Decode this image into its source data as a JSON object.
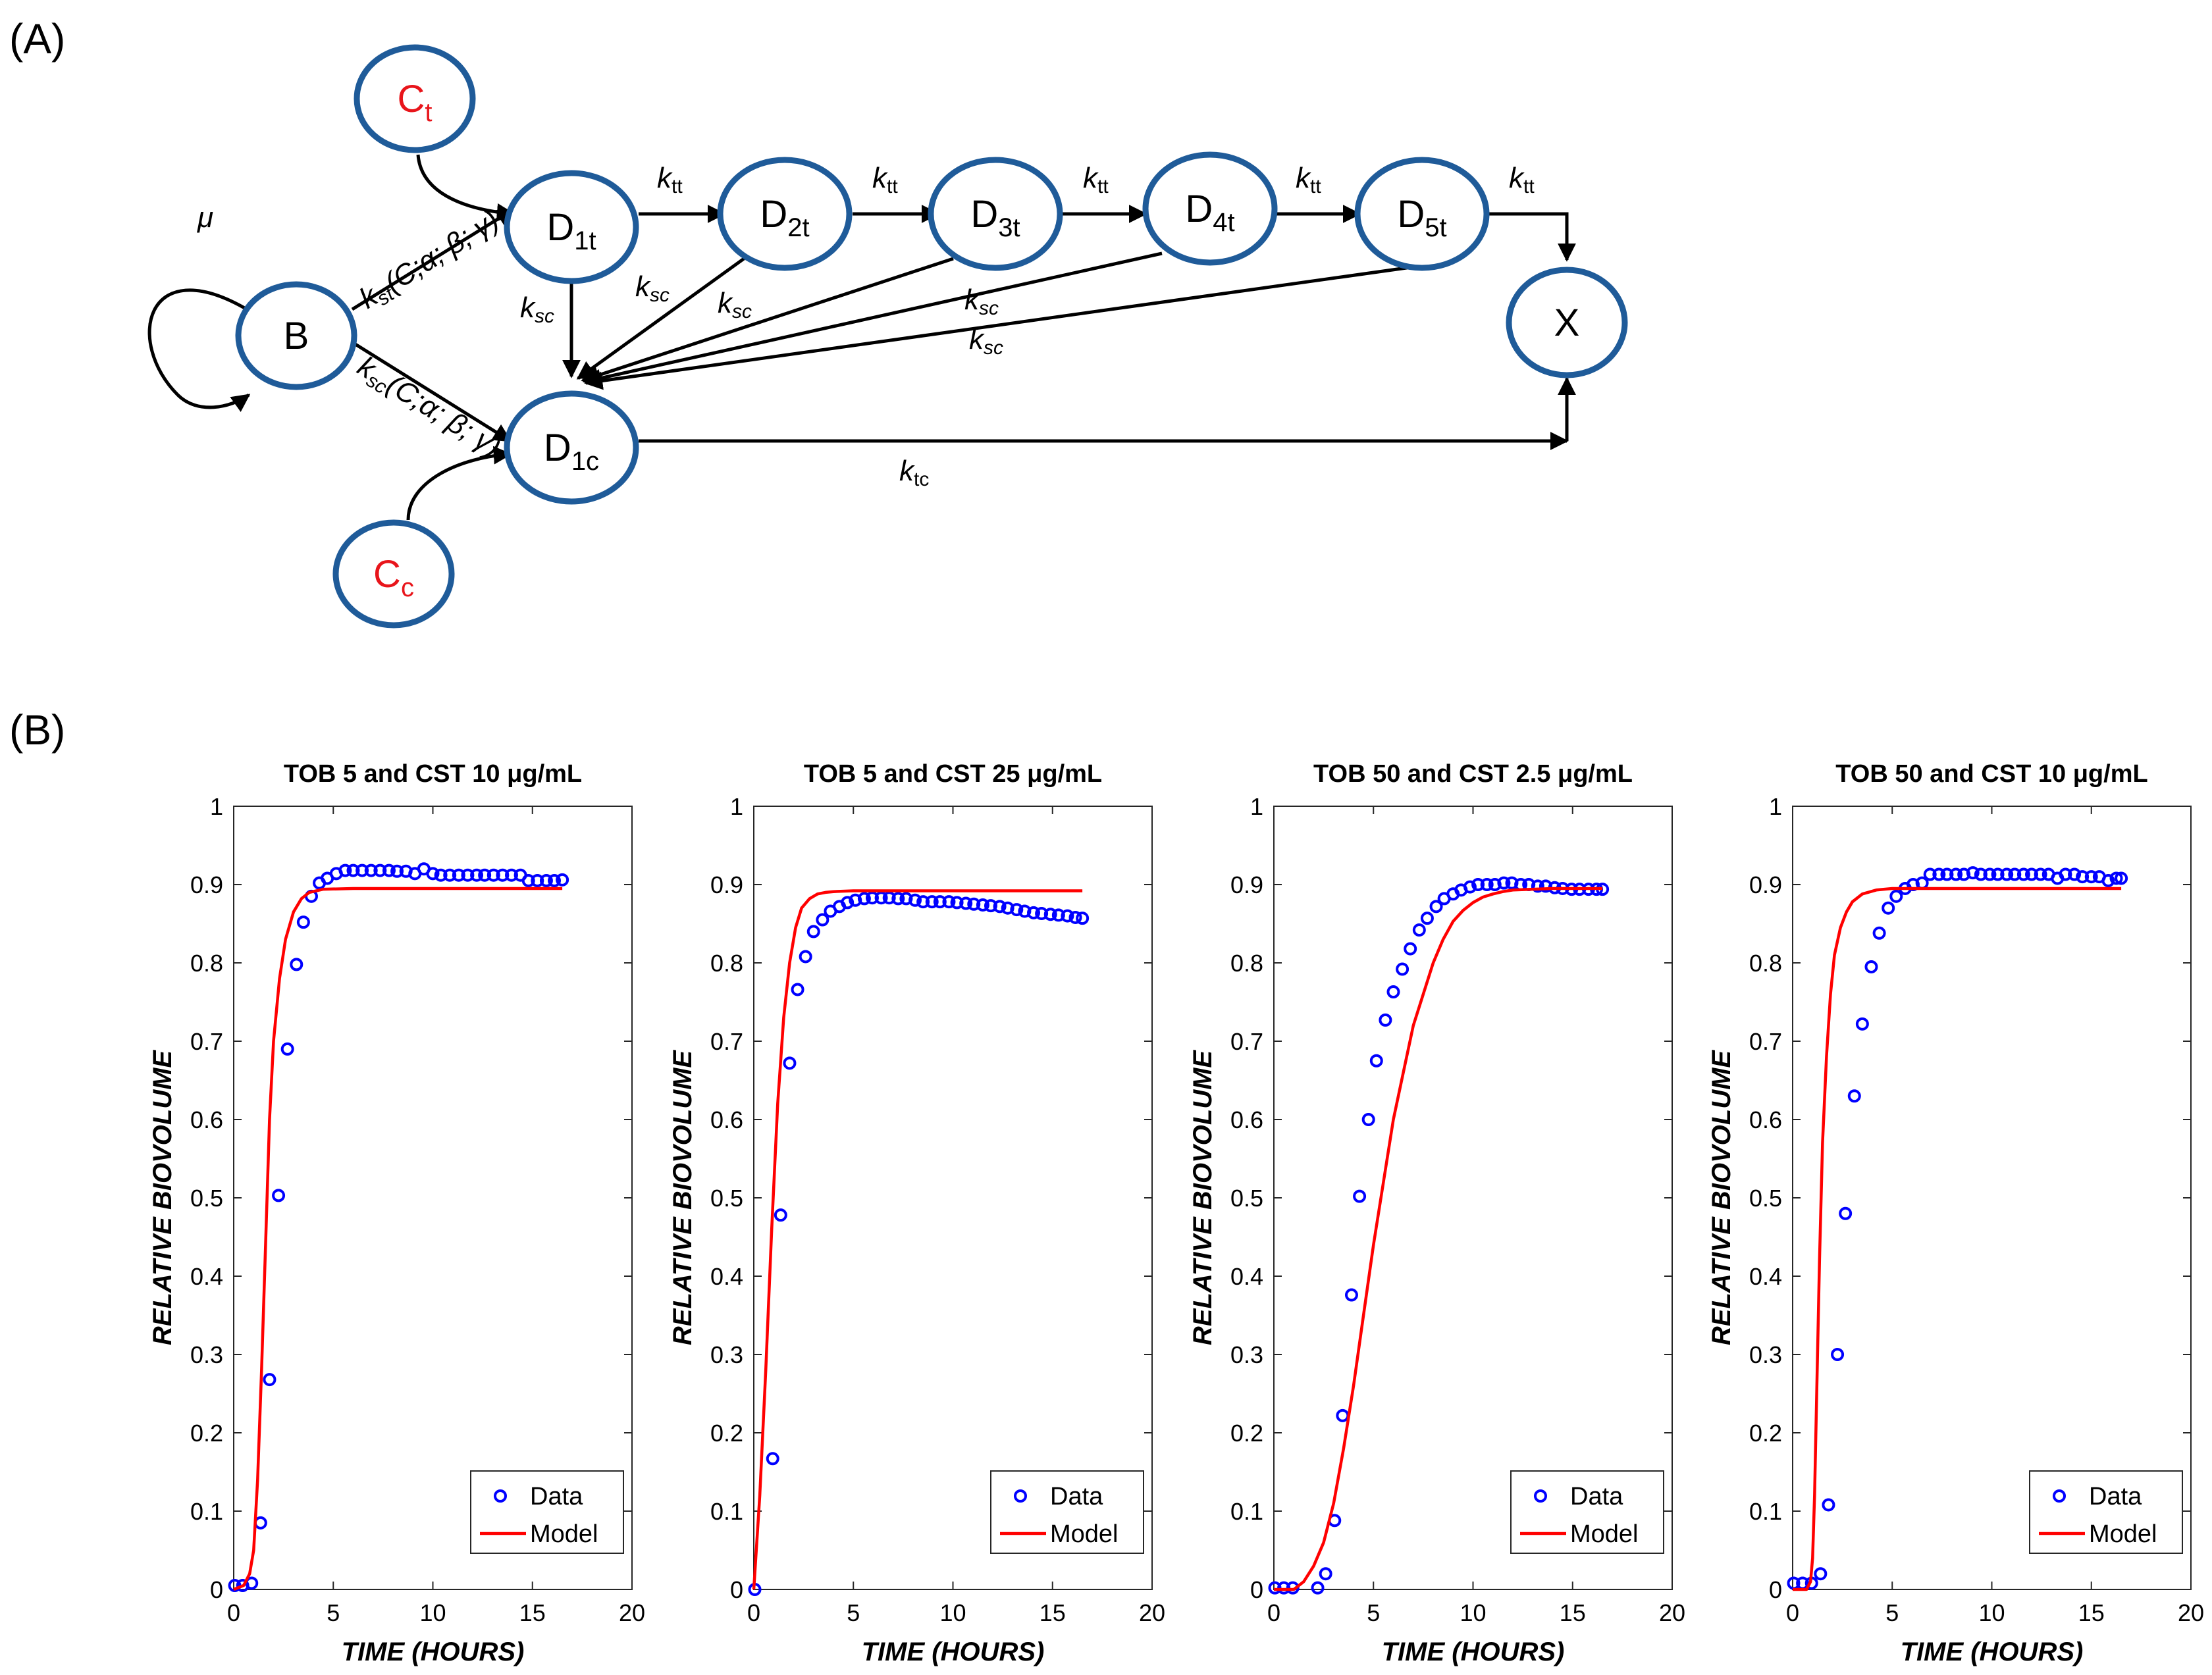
{
  "panel_labels": {
    "a": "(A)",
    "b": "(B)"
  },
  "diagram": {
    "nodes": {
      "Ct": {
        "main": "C",
        "sub": "t",
        "color": "#e8151b"
      },
      "Cc": {
        "main": "C",
        "sub": "c",
        "color": "#e8151b"
      },
      "B": {
        "main": "B",
        "sub": ""
      },
      "D1t": {
        "main": "D",
        "sub": "1t"
      },
      "D2t": {
        "main": "D",
        "sub": "2t"
      },
      "D3t": {
        "main": "D",
        "sub": "3t"
      },
      "D4t": {
        "main": "D",
        "sub": "4t"
      },
      "D5t": {
        "main": "D",
        "sub": "5t"
      },
      "D1c": {
        "main": "D",
        "sub": "1c"
      },
      "X": {
        "main": "X",
        "sub": ""
      }
    },
    "labels": {
      "mu": "μ",
      "k_tt": {
        "main": "k",
        "sub": "tt"
      },
      "k_sc": {
        "main": "k",
        "sub": "sc"
      },
      "k_tc": {
        "main": "k",
        "sub": "tc"
      },
      "k_st_fn": {
        "main": "k",
        "sub": "st",
        "args": "(C;α; β; γ)"
      },
      "k_sc_fn": {
        "main": "k",
        "sub": "sc",
        "args": "(C;α; β; γ)"
      }
    },
    "colors": {
      "node_stroke": "#1f5b99",
      "node_fill": "#ffffff",
      "accent": "#e8151b"
    }
  },
  "chart_data": [
    {
      "type": "scatter+line",
      "title": "TOB 5 and CST 10 μg/mL",
      "xlabel": "TIME (HOURS)",
      "ylabel": "RELATIVE BIOVOLUME",
      "xlim": [
        0,
        20
      ],
      "ylim": [
        0,
        1
      ],
      "xticks": [
        0,
        5,
        10,
        15,
        20
      ],
      "yticks": [
        0,
        0.1,
        0.2,
        0.3,
        0.4,
        0.5,
        0.6,
        0.7,
        0.8,
        0.9,
        1
      ],
      "legend": [
        "Data",
        "Model"
      ],
      "legend_position": "bottom-right",
      "series": [
        {
          "name": "Data",
          "style": "markers",
          "color": "#0000ff",
          "x": [
            0.05,
            0.45,
            0.9,
            1.35,
            1.8,
            2.25,
            2.7,
            3.15,
            3.5,
            3.9,
            4.3,
            4.7,
            5.15,
            5.6,
            6.0,
            6.45,
            6.9,
            7.35,
            7.8,
            8.2,
            8.65,
            9.1,
            9.55,
            10.0,
            10.4,
            10.85,
            11.3,
            11.75,
            12.2,
            12.6,
            13.05,
            13.5,
            13.95,
            14.4,
            14.8,
            15.25,
            15.7,
            16.1,
            16.5
          ],
          "y": [
            0.005,
            0.005,
            0.008,
            0.085,
            0.268,
            0.503,
            0.69,
            0.798,
            0.852,
            0.885,
            0.902,
            0.908,
            0.914,
            0.918,
            0.918,
            0.918,
            0.918,
            0.918,
            0.918,
            0.917,
            0.917,
            0.914,
            0.92,
            0.914,
            0.912,
            0.912,
            0.912,
            0.912,
            0.912,
            0.912,
            0.912,
            0.912,
            0.912,
            0.912,
            0.905,
            0.905,
            0.905,
            0.905,
            0.906
          ]
        },
        {
          "name": "Model",
          "style": "line",
          "color": "#ff0000",
          "x": [
            0,
            0.5,
            0.8,
            1.0,
            1.2,
            1.4,
            1.6,
            1.8,
            2.0,
            2.3,
            2.6,
            3.0,
            3.4,
            3.8,
            4.5,
            6,
            10,
            16.5
          ],
          "y": [
            0.0,
            0.005,
            0.02,
            0.05,
            0.14,
            0.28,
            0.44,
            0.6,
            0.7,
            0.78,
            0.83,
            0.865,
            0.882,
            0.89,
            0.894,
            0.895,
            0.895,
            0.895
          ]
        }
      ]
    },
    {
      "type": "scatter+line",
      "title": "TOB 5 and CST 25 μg/mL",
      "xlabel": "TIME (HOURS)",
      "ylabel": "RELATIVE BIOVOLUME",
      "xlim": [
        0,
        20
      ],
      "ylim": [
        0,
        1
      ],
      "xticks": [
        0,
        5,
        10,
        15,
        20
      ],
      "yticks": [
        0,
        0.1,
        0.2,
        0.3,
        0.4,
        0.5,
        0.6,
        0.7,
        0.8,
        0.9,
        1
      ],
      "legend": [
        "Data",
        "Model"
      ],
      "legend_position": "bottom-right",
      "series": [
        {
          "name": "Data",
          "style": "markers",
          "color": "#0000ff",
          "x": [
            0.05,
            0.95,
            1.35,
            1.8,
            2.2,
            2.6,
            3.0,
            3.45,
            3.85,
            4.3,
            4.7,
            5.1,
            5.55,
            5.95,
            6.4,
            6.8,
            7.25,
            7.65,
            8.1,
            8.5,
            8.95,
            9.35,
            9.8,
            10.2,
            10.65,
            11.05,
            11.5,
            11.9,
            12.35,
            12.75,
            13.2,
            13.6,
            14.05,
            14.45,
            14.9,
            15.3,
            15.75,
            16.15,
            16.5
          ],
          "y": [
            0.0,
            0.167,
            0.478,
            0.672,
            0.766,
            0.808,
            0.84,
            0.855,
            0.866,
            0.872,
            0.877,
            0.88,
            0.882,
            0.883,
            0.883,
            0.883,
            0.882,
            0.882,
            0.88,
            0.878,
            0.878,
            0.878,
            0.878,
            0.877,
            0.876,
            0.875,
            0.874,
            0.873,
            0.872,
            0.87,
            0.868,
            0.866,
            0.864,
            0.863,
            0.862,
            0.861,
            0.86,
            0.858,
            0.857
          ]
        },
        {
          "name": "Model",
          "style": "line",
          "color": "#ff0000",
          "x": [
            0,
            0.3,
            0.6,
            0.9,
            1.2,
            1.5,
            1.8,
            2.1,
            2.4,
            2.8,
            3.2,
            3.6,
            4.0,
            5.0,
            7,
            10,
            16.5
          ],
          "y": [
            0.0,
            0.12,
            0.28,
            0.46,
            0.62,
            0.73,
            0.8,
            0.845,
            0.87,
            0.882,
            0.888,
            0.89,
            0.891,
            0.892,
            0.892,
            0.892,
            0.892
          ]
        }
      ]
    },
    {
      "type": "scatter+line",
      "title": "TOB 50 and CST 2.5 μg/mL",
      "xlabel": "TIME (HOURS)",
      "ylabel": "RELATIVE BIOVOLUME",
      "xlim": [
        0,
        20
      ],
      "ylim": [
        0,
        1
      ],
      "xticks": [
        0,
        5,
        10,
        15,
        20
      ],
      "yticks": [
        0,
        0.1,
        0.2,
        0.3,
        0.4,
        0.5,
        0.6,
        0.7,
        0.8,
        0.9,
        1
      ],
      "legend": [
        "Data",
        "Model"
      ],
      "legend_position": "bottom-right",
      "series": [
        {
          "name": "Data",
          "style": "markers",
          "color": "#0000ff",
          "x": [
            0.05,
            0.5,
            0.95,
            2.2,
            2.6,
            3.05,
            3.45,
            3.9,
            4.3,
            4.75,
            5.15,
            5.6,
            6.0,
            6.45,
            6.85,
            7.3,
            7.7,
            8.15,
            8.55,
            9.0,
            9.4,
            9.85,
            10.25,
            10.7,
            11.1,
            11.55,
            11.95,
            12.4,
            12.8,
            13.25,
            13.65,
            14.1,
            14.5,
            14.95,
            15.35,
            15.8,
            16.2,
            16.5
          ],
          "y": [
            0.002,
            0.002,
            0.002,
            0.002,
            0.02,
            0.088,
            0.222,
            0.376,
            0.502,
            0.6,
            0.675,
            0.727,
            0.763,
            0.792,
            0.818,
            0.842,
            0.857,
            0.872,
            0.882,
            0.888,
            0.893,
            0.897,
            0.9,
            0.9,
            0.9,
            0.902,
            0.902,
            0.9,
            0.9,
            0.898,
            0.898,
            0.896,
            0.895,
            0.894,
            0.894,
            0.894,
            0.894,
            0.894
          ]
        },
        {
          "name": "Model",
          "style": "line",
          "color": "#ff0000",
          "x": [
            0,
            1,
            1.5,
            2,
            2.5,
            3,
            3.5,
            4,
            4.5,
            5,
            5.5,
            6,
            6.5,
            7,
            7.5,
            8,
            8.5,
            9,
            9.5,
            10,
            10.5,
            11,
            11.5,
            12,
            13,
            14,
            16.5
          ],
          "y": [
            0.0,
            0.0,
            0.01,
            0.03,
            0.06,
            0.11,
            0.18,
            0.26,
            0.35,
            0.44,
            0.52,
            0.6,
            0.66,
            0.72,
            0.76,
            0.8,
            0.83,
            0.853,
            0.867,
            0.877,
            0.884,
            0.888,
            0.891,
            0.893,
            0.894,
            0.895,
            0.895
          ]
        }
      ]
    },
    {
      "type": "scatter+line",
      "title": "TOB 50 and CST 10 μg/mL",
      "xlabel": "TIME (HOURS)",
      "ylabel": "RELATIVE BIOVOLUME",
      "xlim": [
        0,
        20
      ],
      "ylim": [
        0,
        1
      ],
      "xticks": [
        0,
        5,
        10,
        15,
        20
      ],
      "yticks": [
        0,
        0.1,
        0.2,
        0.3,
        0.4,
        0.5,
        0.6,
        0.7,
        0.8,
        0.9,
        1
      ],
      "legend": [
        "Data",
        "Model"
      ],
      "legend_position": "bottom-right",
      "series": [
        {
          "name": "Data",
          "style": "markers",
          "color": "#0000ff",
          "x": [
            0.05,
            0.5,
            0.95,
            1.4,
            1.8,
            2.25,
            2.65,
            3.1,
            3.5,
            3.95,
            4.35,
            4.8,
            5.2,
            5.65,
            6.05,
            6.5,
            6.9,
            7.35,
            7.75,
            8.2,
            8.6,
            9.05,
            9.45,
            9.9,
            10.3,
            10.75,
            11.15,
            11.6,
            12.0,
            12.45,
            12.85,
            13.3,
            13.7,
            14.15,
            14.55,
            15.0,
            15.4,
            15.85,
            16.25,
            16.5
          ],
          "y": [
            0.008,
            0.008,
            0.008,
            0.02,
            0.108,
            0.3,
            0.48,
            0.63,
            0.722,
            0.795,
            0.838,
            0.87,
            0.885,
            0.895,
            0.9,
            0.902,
            0.913,
            0.913,
            0.913,
            0.913,
            0.913,
            0.915,
            0.913,
            0.913,
            0.913,
            0.913,
            0.913,
            0.913,
            0.913,
            0.913,
            0.913,
            0.908,
            0.913,
            0.913,
            0.91,
            0.91,
            0.91,
            0.905,
            0.908,
            0.908
          ]
        },
        {
          "name": "Model",
          "style": "line",
          "color": "#ff0000",
          "x": [
            0,
            0.7,
            0.9,
            1.0,
            1.1,
            1.2,
            1.35,
            1.5,
            1.7,
            1.9,
            2.1,
            2.4,
            2.7,
            3.0,
            3.5,
            4.2,
            5,
            7,
            10,
            16.5
          ],
          "y": [
            0.0,
            0.0,
            0.01,
            0.04,
            0.12,
            0.24,
            0.42,
            0.57,
            0.68,
            0.76,
            0.81,
            0.845,
            0.865,
            0.878,
            0.888,
            0.893,
            0.895,
            0.895,
            0.895,
            0.895
          ]
        }
      ]
    }
  ]
}
